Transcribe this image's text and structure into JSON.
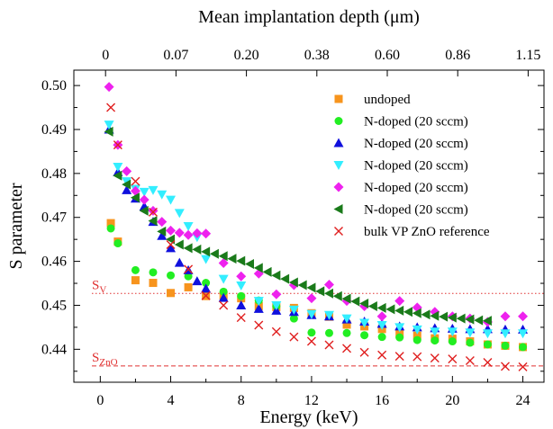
{
  "chart_data": {
    "type": "scatter",
    "xlabel": "Energy (keV)",
    "ylabel": "S parameter",
    "top_axis_label": "Mean implantation depth (μm)",
    "xlim": [
      -1.5,
      25.2
    ],
    "ylim": [
      0.4325,
      0.5035
    ],
    "x_ticks": [
      0,
      4,
      8,
      12,
      16,
      20,
      24
    ],
    "y_ticks": [
      0.44,
      0.45,
      0.46,
      0.47,
      0.48,
      0.49,
      0.5
    ],
    "top_ticks": [
      {
        "energy": 0.3,
        "label": "0"
      },
      {
        "energy": 4.3,
        "label": "0.07"
      },
      {
        "energy": 8.3,
        "label": "0.20"
      },
      {
        "energy": 12.3,
        "label": "0.38"
      },
      {
        "energy": 16.3,
        "label": "0.60"
      },
      {
        "energy": 20.3,
        "label": "0.86"
      },
      {
        "energy": 24.3,
        "label": "1.15"
      }
    ],
    "legend_position": "top-right",
    "reference_lines": [
      {
        "label": "S",
        "subscript": "V",
        "y": 0.4527,
        "color": "#e03030",
        "style": "dotted"
      },
      {
        "label": "S",
        "subscript": "ZnO",
        "y": 0.4362,
        "color": "#e03030",
        "style": "dashed"
      }
    ],
    "series": [
      {
        "name": "undoped",
        "marker": "square",
        "color": "#f7941d",
        "x": [
          0.6,
          1,
          2,
          3,
          4,
          5,
          6,
          7,
          8,
          9,
          10,
          11,
          12,
          13,
          14,
          15,
          16,
          17,
          18,
          19,
          20,
          21,
          22,
          23,
          24
        ],
        "y": [
          0.4687,
          0.4645,
          0.4557,
          0.4551,
          0.4528,
          0.4541,
          0.4521,
          0.4522,
          0.4516,
          0.4498,
          0.4496,
          0.4494,
          0.4482,
          0.4474,
          0.4456,
          0.4452,
          0.4446,
          0.4435,
          0.4431,
          0.4425,
          0.4424,
          0.4418,
          0.4411,
          0.4408,
          0.4405
        ]
      },
      {
        "name": "N-doped (20 sccm)",
        "marker": "circle",
        "color": "#22ee22",
        "x": [
          0.6,
          1,
          2,
          3,
          4,
          5,
          6,
          7,
          8,
          9,
          10,
          11,
          12,
          13,
          14,
          15,
          16,
          17,
          18,
          19,
          20,
          21,
          22,
          23,
          24
        ],
        "y": [
          0.4675,
          0.4641,
          0.458,
          0.4575,
          0.4568,
          0.4566,
          0.4551,
          0.4531,
          0.4521,
          0.4511,
          0.4498,
          0.447,
          0.4438,
          0.4437,
          0.4437,
          0.4432,
          0.4428,
          0.4427,
          0.4421,
          0.442,
          0.4418,
          0.4415,
          0.4411,
          0.4408,
          0.4405
        ]
      },
      {
        "name": "N-doped (20 sccm)",
        "marker": "triangle-up",
        "color": "#1010dd",
        "x": [
          0.5,
          1,
          1.5,
          2,
          2.5,
          3,
          3.5,
          4,
          4.5,
          5,
          5.5,
          6,
          7,
          8,
          9,
          10,
          11,
          12,
          13,
          14,
          15,
          16,
          17,
          18,
          19,
          20,
          21,
          22,
          23,
          24
        ],
        "y": [
          0.49,
          0.4803,
          0.4762,
          0.4743,
          0.4725,
          0.469,
          0.4658,
          0.463,
          0.4597,
          0.458,
          0.4555,
          0.4538,
          0.4517,
          0.45,
          0.4492,
          0.4488,
          0.4485,
          0.4478,
          0.4475,
          0.4468,
          0.4463,
          0.4458,
          0.4452,
          0.445,
          0.4448,
          0.4447,
          0.4446,
          0.4446,
          0.4445,
          0.4445
        ]
      },
      {
        "name": "N-doped (20 sccm)",
        "marker": "triangle-down",
        "color": "#33eeff",
        "x": [
          0.5,
          1,
          1.5,
          2,
          2.5,
          3,
          3.5,
          4,
          4.5,
          5,
          5.5,
          6,
          7,
          8,
          9,
          10,
          11,
          12,
          13,
          14,
          15,
          16,
          17,
          18,
          19,
          20,
          21,
          22,
          23,
          24
        ],
        "y": [
          0.4911,
          0.4815,
          0.4782,
          0.4765,
          0.4758,
          0.4762,
          0.4752,
          0.474,
          0.471,
          0.468,
          0.4655,
          0.4605,
          0.456,
          0.4545,
          0.451,
          0.45,
          0.449,
          0.448,
          0.4478,
          0.447,
          0.446,
          0.4455,
          0.445,
          0.4445,
          0.444,
          0.444,
          0.4438,
          0.4436,
          0.4436,
          0.4436
        ]
      },
      {
        "name": "N-doped (20 sccm)",
        "marker": "diamond",
        "color": "#ee22ee",
        "x": [
          0.5,
          1,
          1.5,
          2,
          2.5,
          3,
          3.5,
          4,
          4.5,
          5,
          5.5,
          6,
          7,
          8,
          9,
          10,
          11,
          12,
          13,
          14,
          15,
          16,
          17,
          18,
          19,
          20,
          21,
          22,
          23,
          24
        ],
        "y": [
          0.4997,
          0.4865,
          0.4805,
          0.476,
          0.474,
          0.4715,
          0.469,
          0.467,
          0.4665,
          0.466,
          0.4664,
          0.4663,
          0.4596,
          0.4566,
          0.4572,
          0.4525,
          0.4546,
          0.4516,
          0.4547,
          0.451,
          0.4498,
          0.4475,
          0.451,
          0.4495,
          0.4485,
          0.4475,
          0.447,
          0.4462,
          0.4475,
          0.4475
        ]
      },
      {
        "name": "N-doped (20 sccm)",
        "marker": "triangle-left",
        "color": "#1a7a1a",
        "x": [
          0.5,
          1,
          1.5,
          2,
          2.5,
          3,
          3.5,
          4,
          4.5,
          5,
          5.5,
          6,
          6.5,
          7,
          7.5,
          8,
          8.5,
          9,
          9.5,
          10,
          10.5,
          11,
          11.5,
          12,
          12.5,
          13,
          13.5,
          14,
          14.5,
          15,
          15.5,
          16,
          16.5,
          17,
          17.5,
          18,
          18.5,
          19,
          19.5,
          20,
          20.5,
          21,
          21.5,
          22
        ],
        "y": [
          0.4895,
          0.4795,
          0.4775,
          0.4745,
          0.4715,
          0.4692,
          0.4668,
          0.465,
          0.4638,
          0.463,
          0.4627,
          0.4622,
          0.4617,
          0.4612,
          0.4606,
          0.4601,
          0.4594,
          0.4585,
          0.4576,
          0.4568,
          0.456,
          0.4552,
          0.4546,
          0.454,
          0.4532,
          0.4527,
          0.4521,
          0.4515,
          0.4509,
          0.4504,
          0.4498,
          0.4494,
          0.4491,
          0.4488,
          0.4485,
          0.4482,
          0.4479,
          0.4476,
          0.4474,
          0.4472,
          0.447,
          0.4468,
          0.4466,
          0.4465
        ]
      },
      {
        "name": "bulk VP ZnO reference",
        "marker": "x",
        "color": "#e02020",
        "x": [
          0.6,
          1,
          2,
          3,
          4,
          5,
          6,
          7,
          8,
          9,
          10,
          11,
          12,
          13,
          14,
          15,
          16,
          17,
          18,
          19,
          20,
          21,
          22,
          23,
          24
        ],
        "y": [
          0.495,
          0.4865,
          0.4782,
          0.4712,
          0.4638,
          0.4582,
          0.4522,
          0.45,
          0.4472,
          0.4455,
          0.444,
          0.4428,
          0.4418,
          0.441,
          0.4402,
          0.4393,
          0.4387,
          0.4384,
          0.4383,
          0.438,
          0.4378,
          0.4374,
          0.437,
          0.4361,
          0.436
        ]
      }
    ]
  }
}
